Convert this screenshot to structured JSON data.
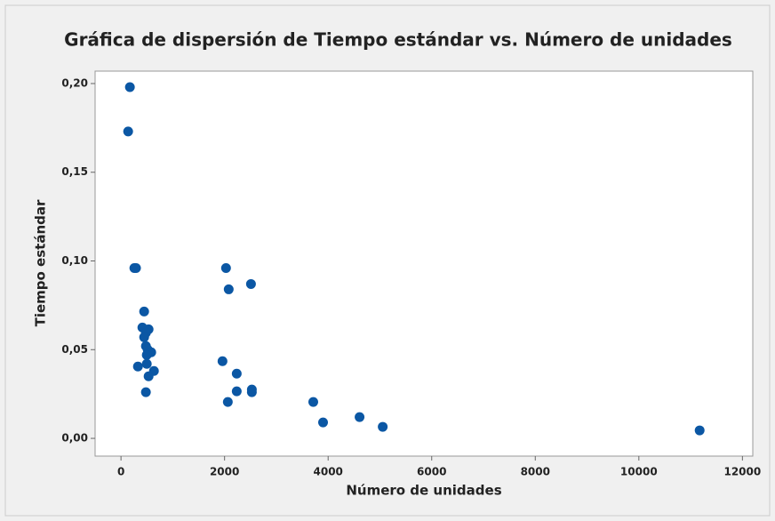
{
  "chart_data": {
    "type": "scatter",
    "title": "Gráfica de dispersión de Tiempo estándar vs. Número de unidades",
    "x_label": "Número de unidades",
    "y_label": "Tiempo estándar",
    "color": "#0b57a4",
    "xlim": [
      -500,
      12200
    ],
    "ylim": [
      -0.01,
      0.207
    ],
    "xticks": [
      0,
      2000,
      4000,
      6000,
      8000,
      10000,
      12000
    ],
    "yticks": [
      {
        "value": 0,
        "label": "0,00"
      },
      {
        "value": 0.05,
        "label": "0,05"
      },
      {
        "value": 0.1,
        "label": "0,10"
      },
      {
        "value": 0.15,
        "label": "0,15"
      },
      {
        "value": 0.2,
        "label": "0,20"
      }
    ],
    "x": [
      172,
      138,
      258,
      290,
      447,
      413,
      533,
      481,
      447,
      481,
      516,
      584,
      498,
      327,
      498,
      636,
      533,
      481,
      2028,
      2080,
      2510,
      1960,
      2235,
      2235,
      2527,
      2527,
      2063,
      3713,
      3902,
      4607,
      5054,
      11174
    ],
    "values": [
      0.198,
      0.173,
      0.096,
      0.096,
      0.0715,
      0.0625,
      0.0615,
      0.0595,
      0.057,
      0.052,
      0.05,
      0.0485,
      0.047,
      0.0405,
      0.042,
      0.038,
      0.035,
      0.026,
      0.096,
      0.084,
      0.087,
      0.0435,
      0.0365,
      0.0265,
      0.0275,
      0.026,
      0.0205,
      0.0205,
      0.009,
      0.012,
      0.0065,
      0.0045
    ]
  }
}
